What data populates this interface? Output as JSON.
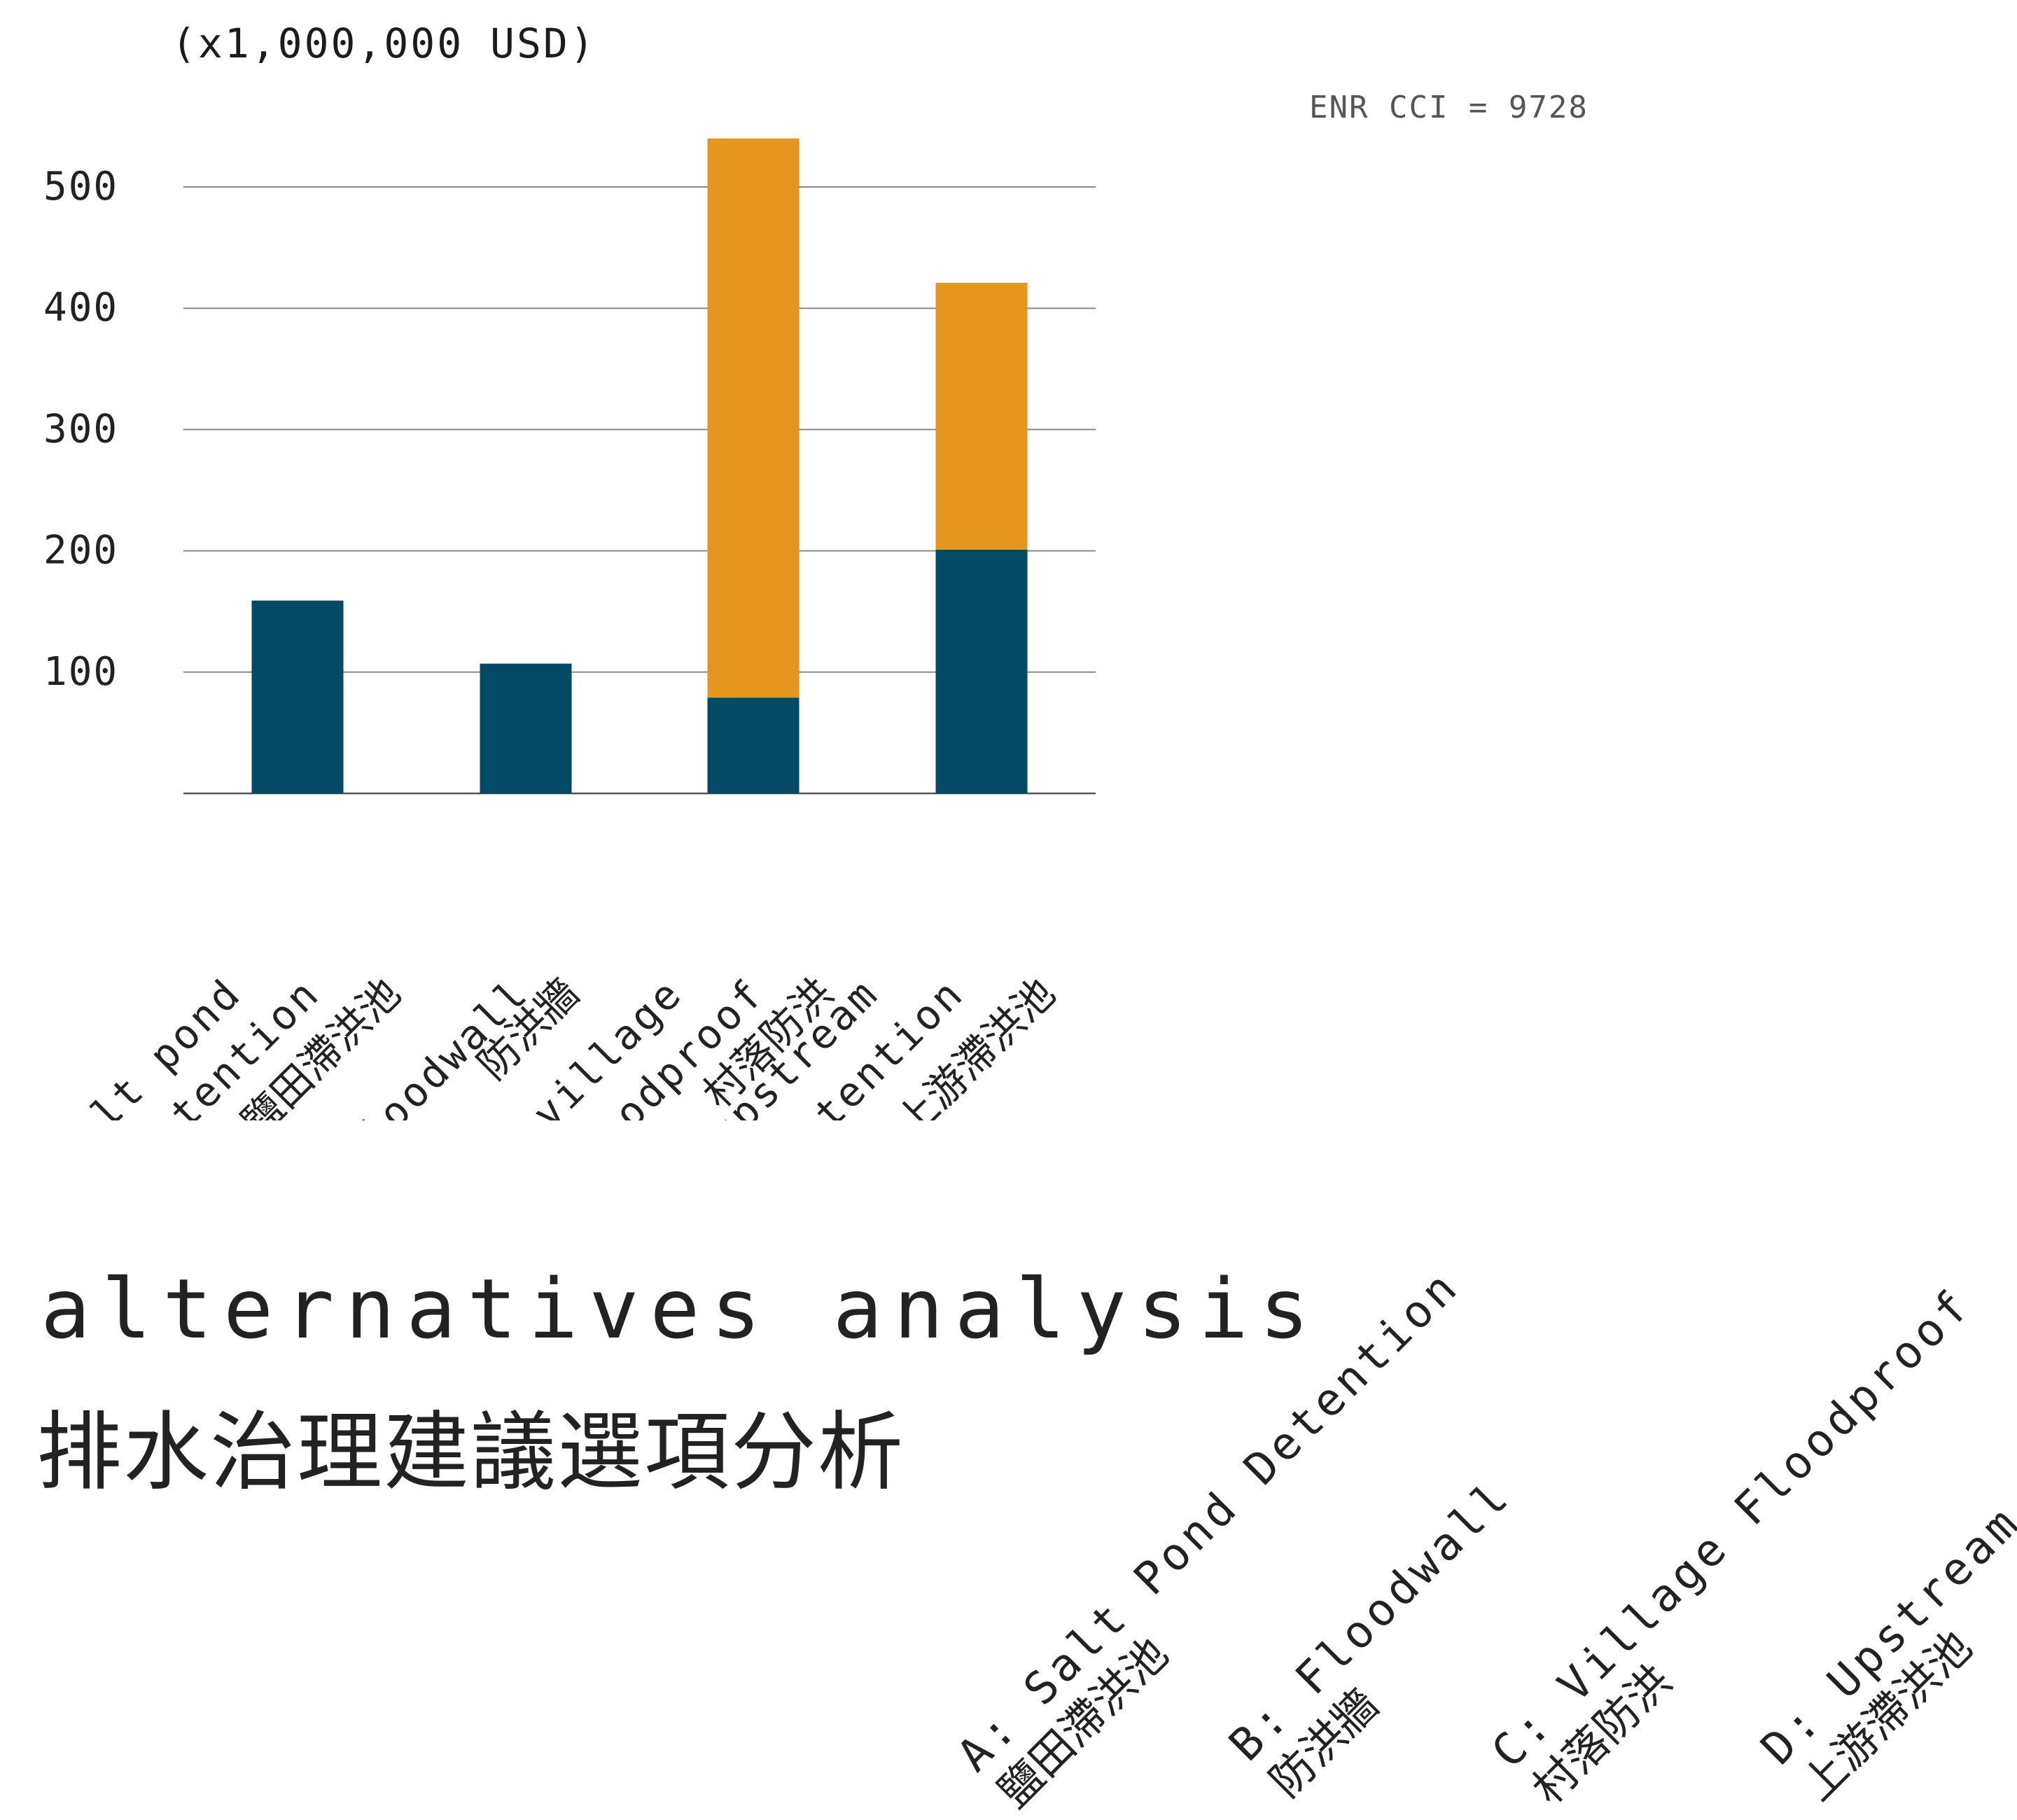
{
  "chart_data": {
    "type": "bar",
    "stacked": true,
    "unit_label": "(x1,000,000 USD)",
    "note": "ENR CCI = 9728",
    "yticks": [
      "100",
      "200",
      "300",
      "400",
      "500"
    ],
    "ylim": [
      0,
      560
    ],
    "grid": true,
    "categories": [
      {
        "label_en": "salt pond detention",
        "label_en_lines": [
          "salt pond",
          "detention"
        ],
        "label_zh": "鹽田滯洪池"
      },
      {
        "label_en": "floodwall",
        "label_en_lines": [
          "floodwall"
        ],
        "label_zh": "防洪牆"
      },
      {
        "label_en": "village floodproof",
        "label_en_lines": [
          "village",
          "floodproof"
        ],
        "label_zh": "村落防洪"
      },
      {
        "label_en": "upstream detention",
        "label_en_lines": [
          "upstream",
          "detention"
        ],
        "label_zh": "上游滯洪池"
      }
    ],
    "series": [
      {
        "values": [
          159,
          107,
          79,
          201
        ],
        "color": "#034a66"
      },
      {
        "values": [
          0,
          0,
          461,
          220
        ],
        "color": "#e6951d"
      }
    ]
  },
  "title": {
    "en": "alternatives analysis",
    "zh": "排水治理建議選項分析"
  },
  "legend": [
    {
      "line1": "A: Salt Pond Detention",
      "line2": "鹽田滯洪池"
    },
    {
      "line1": "B: Floodwall",
      "line2": "防洪牆"
    },
    {
      "line1": "C: Village Floodproof",
      "line2": "村落防洪"
    },
    {
      "line1": "D: Upstream Detention",
      "line2": "上游滯洪池"
    }
  ],
  "colors": {
    "gridline": "#8a8a8a",
    "axis": "#555555",
    "text": "#222222"
  }
}
